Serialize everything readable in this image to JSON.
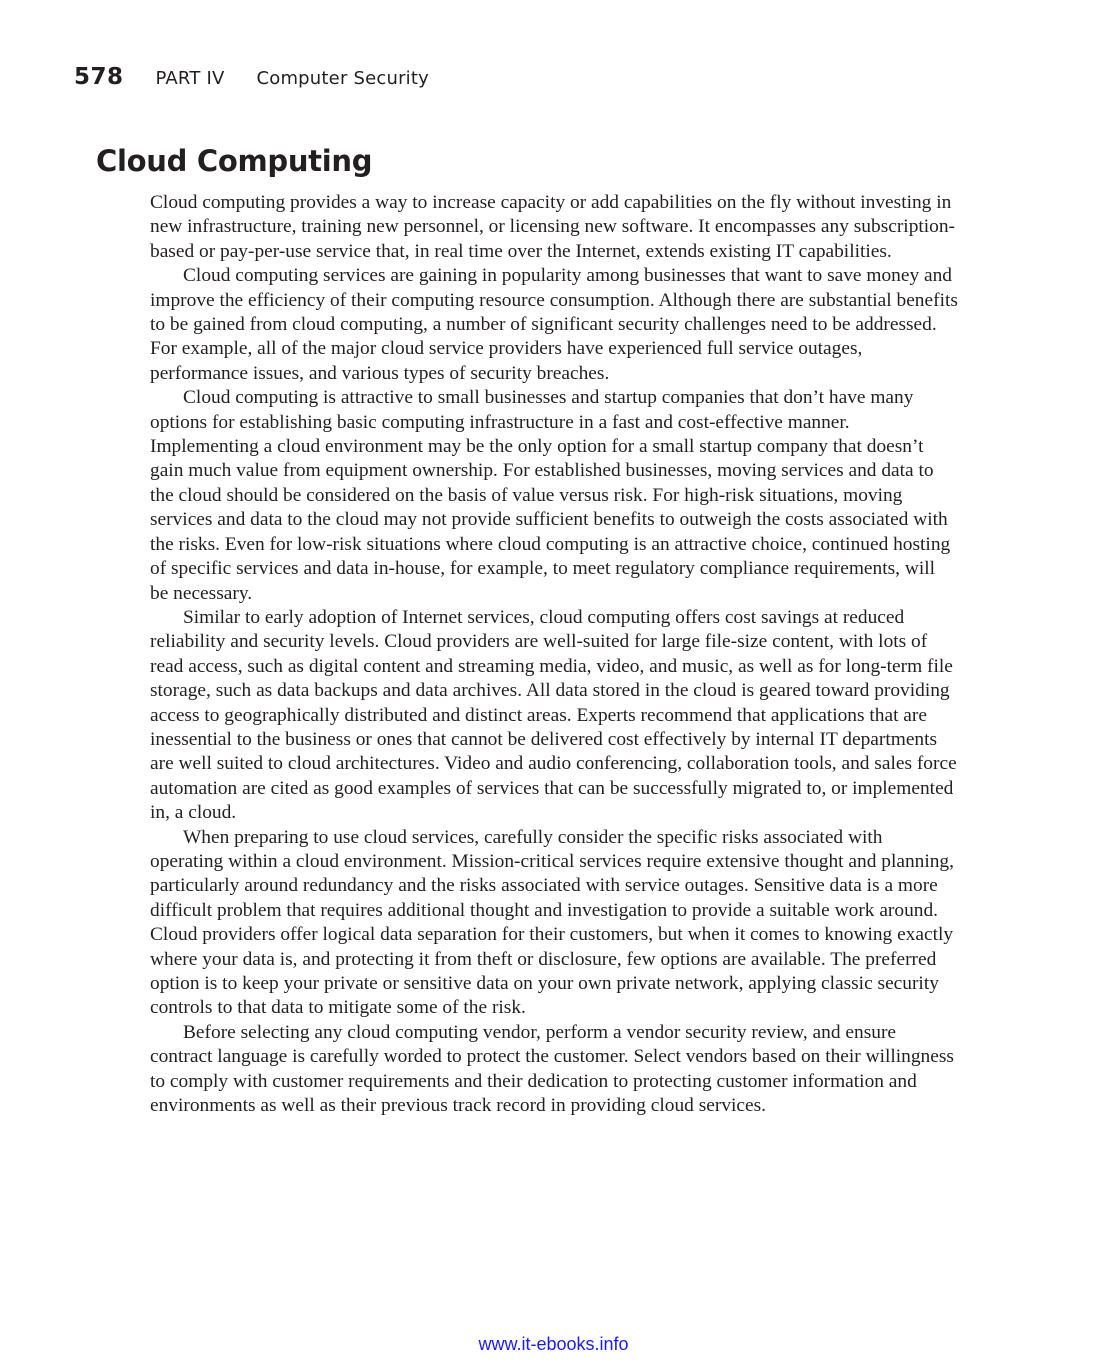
{
  "header": {
    "page_number": "578",
    "part": "PART IV",
    "chapter": "Computer Security"
  },
  "section": {
    "title": "Cloud Computing",
    "paragraphs": [
      "Cloud computing provides a way to increase capacity or add capabilities on the fly without investing in new infrastructure, training new personnel, or licensing new software. It encompasses any subscription-based or pay-per-use service that, in real time over the Internet, extends existing IT capabilities.",
      "Cloud computing services are gaining in popularity among businesses that want to save money and improve the efficiency of their computing resource consumption. Although there are substantial benefits to be gained from cloud computing, a number of significant security challenges need to be addressed. For example, all of the major cloud service providers have experienced full service outages, performance issues, and various types of security breaches.",
      "Cloud computing is attractive to small businesses and startup companies that don’t have many options for establishing basic computing infrastructure in a fast and cost-effective manner. Implementing a cloud environment may be the only option for a small startup company that doesn’t gain much value from equipment ownership. For established businesses, moving services and data to the cloud should be considered on the basis of value versus risk. For high-risk situations, moving services and data to the cloud may not provide sufficient benefits to outweigh the costs associated with the risks. Even for low-risk situations where cloud computing is an attractive choice, continued hosting of specific services and data in-house, for example, to meet regulatory compliance requirements, will be necessary.",
      "Similar to early adoption of Internet services, cloud computing offers cost savings at reduced reliability and security levels. Cloud providers are well-suited for large file-size content, with lots of read access, such as digital content and streaming media, video, and music, as well as for long-term file storage, such as data backups and data archives. All data stored in the cloud is geared toward providing access to geographically distributed and distinct areas. Experts recommend that applications that are inessential to the business or ones that cannot be delivered cost effectively by internal IT departments are well suited to cloud architectures. Video and audio conferencing, collaboration tools, and sales force automation are cited as good examples of services that can be successfully migrated to, or implemented in, a cloud.",
      "When preparing to use cloud services, carefully consider the specific risks associated with operating within a cloud environment. Mission-critical services require extensive thought and planning, particularly around redundancy and the risks associated with service outages. Sensitive data is a more difficult problem that requires additional thought and investigation to provide a suitable work around. Cloud providers offer logical data separation for their customers, but when it comes to knowing exactly where your data is, and protecting it from theft or disclosure, few options are available. The preferred option is to keep your private or sensitive data on your own private network, applying classic security controls to that data to mitigate some of the risk.",
      "Before selecting any cloud computing vendor, perform a vendor security review, and ensure contract language is carefully worded to protect the customer. Select vendors based on their willingness to comply with customer requirements and their dedication to protecting customer information and environments as well as their previous track record in providing cloud services."
    ]
  },
  "footer": {
    "link_text": "www.it-ebooks.info"
  }
}
